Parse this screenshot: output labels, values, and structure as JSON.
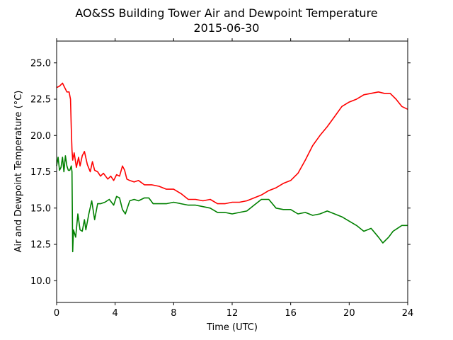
{
  "chart_data": {
    "type": "line",
    "title": "AO&SS Building Tower Air and Dewpoint Temperature",
    "subtitle": "2015-06-30",
    "xlabel": "Time (UTC)",
    "ylabel": "Air and Dewpoint Temperature (°C)",
    "xlim": [
      0,
      24
    ],
    "ylim": [
      8.5,
      26.5
    ],
    "xticks": [
      0,
      4,
      8,
      12,
      16,
      20,
      24
    ],
    "xtick_labels": [
      "0",
      "4",
      "8",
      "12",
      "16",
      "20",
      "24"
    ],
    "yticks": [
      10.0,
      12.5,
      15.0,
      17.5,
      20.0,
      22.5,
      25.0
    ],
    "ytick_labels": [
      "10.0",
      "12.5",
      "15.0",
      "17.5",
      "20.0",
      "22.5",
      "25.0"
    ],
    "grid": false,
    "series": [
      {
        "color": "#ff0000",
        "x": [
          0.0,
          0.2,
          0.4,
          0.55,
          0.7,
          0.85,
          0.95,
          1.0,
          1.05,
          1.1,
          1.2,
          1.35,
          1.5,
          1.6,
          1.75,
          1.9,
          2.1,
          2.3,
          2.45,
          2.6,
          2.8,
          3.0,
          3.2,
          3.5,
          3.7,
          3.9,
          4.1,
          4.3,
          4.5,
          4.65,
          4.8,
          5.0,
          5.3,
          5.6,
          6.0,
          6.5,
          7.0,
          7.5,
          8.0,
          8.5,
          9.0,
          9.5,
          10.0,
          10.5,
          11.0,
          11.5,
          12.0,
          12.5,
          13.0,
          13.5,
          14.0,
          14.5,
          15.0,
          15.5,
          16.0,
          16.5,
          17.0,
          17.5,
          18.0,
          18.5,
          19.0,
          19.5,
          20.0,
          20.5,
          21.0,
          21.5,
          22.0,
          22.4,
          22.8,
          23.2,
          23.6,
          24.0
        ],
        "y": [
          23.3,
          23.4,
          23.6,
          23.3,
          23.0,
          23.0,
          22.5,
          20.5,
          19.0,
          18.3,
          18.8,
          17.8,
          18.5,
          17.9,
          18.6,
          18.9,
          18.0,
          17.5,
          18.2,
          17.6,
          17.5,
          17.2,
          17.4,
          17.0,
          17.2,
          16.9,
          17.3,
          17.2,
          17.9,
          17.6,
          17.0,
          16.9,
          16.8,
          16.9,
          16.6,
          16.6,
          16.5,
          16.3,
          16.3,
          16.0,
          15.6,
          15.6,
          15.5,
          15.6,
          15.3,
          15.3,
          15.4,
          15.4,
          15.5,
          15.7,
          15.9,
          16.2,
          16.4,
          16.7,
          16.9,
          17.4,
          18.3,
          19.3,
          20.0,
          20.6,
          21.3,
          22.0,
          22.3,
          22.5,
          22.8,
          22.9,
          23.0,
          22.9,
          22.9,
          22.5,
          22.0,
          21.8
        ]
      },
      {
        "color": "#008000",
        "x": [
          0.0,
          0.1,
          0.2,
          0.3,
          0.4,
          0.5,
          0.6,
          0.7,
          0.8,
          0.9,
          1.0,
          1.05,
          1.1,
          1.15,
          1.3,
          1.45,
          1.6,
          1.75,
          1.9,
          2.0,
          2.2,
          2.4,
          2.6,
          2.8,
          3.0,
          3.3,
          3.6,
          3.9,
          4.1,
          4.3,
          4.5,
          4.7,
          5.0,
          5.3,
          5.6,
          6.0,
          6.3,
          6.6,
          7.0,
          7.5,
          8.0,
          8.5,
          9.0,
          9.5,
          10.0,
          10.5,
          11.0,
          11.5,
          12.0,
          12.5,
          13.0,
          13.5,
          14.0,
          14.5,
          15.0,
          15.5,
          16.0,
          16.5,
          17.0,
          17.5,
          18.0,
          18.5,
          19.0,
          19.5,
          20.0,
          20.5,
          21.0,
          21.5,
          22.0,
          22.3,
          22.7,
          23.0,
          23.3,
          23.6,
          24.0
        ],
        "y": [
          17.9,
          18.5,
          17.6,
          17.8,
          18.5,
          17.5,
          18.6,
          17.9,
          17.6,
          17.6,
          17.9,
          17.5,
          12.0,
          13.5,
          13.0,
          14.6,
          13.5,
          13.4,
          14.2,
          13.5,
          14.6,
          15.5,
          14.2,
          15.3,
          15.3,
          15.4,
          15.6,
          15.2,
          15.8,
          15.7,
          14.9,
          14.6,
          15.5,
          15.6,
          15.5,
          15.7,
          15.7,
          15.3,
          15.3,
          15.3,
          15.4,
          15.3,
          15.2,
          15.2,
          15.1,
          15.0,
          14.7,
          14.7,
          14.6,
          14.7,
          14.8,
          15.2,
          15.6,
          15.6,
          15.0,
          14.9,
          14.9,
          14.6,
          14.7,
          14.5,
          14.6,
          14.8,
          14.6,
          14.4,
          14.1,
          13.8,
          13.4,
          13.6,
          13.0,
          12.6,
          13.0,
          13.4,
          13.6,
          13.8,
          13.8
        ]
      }
    ]
  }
}
